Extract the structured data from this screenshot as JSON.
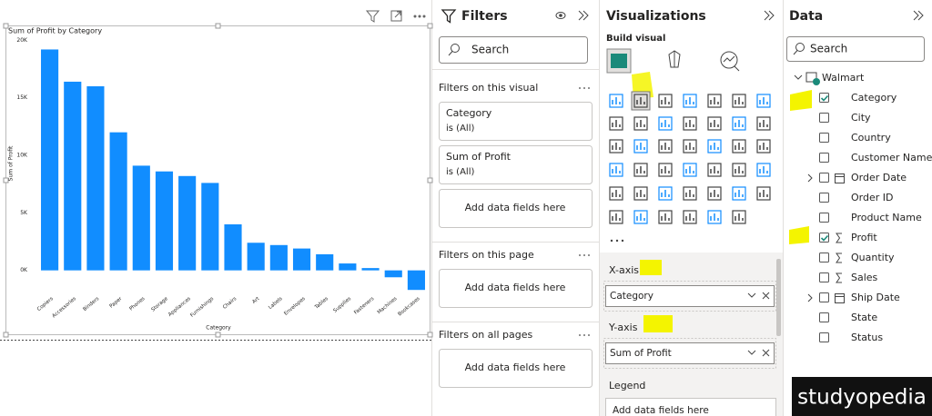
{
  "chart_data": {
    "type": "bar",
    "title": "Sum of Profit by Category",
    "x_label": "Category",
    "y_label": "Sum of Profit",
    "categories": [
      "Copiers",
      "Accessories",
      "Binders",
      "Paper",
      "Phones",
      "Storage",
      "Appliances",
      "Furnishings",
      "Chairs",
      "Art",
      "Labels",
      "Envelopes",
      "Tables",
      "Supplies",
      "Fasteners",
      "Machines",
      "Bookcases"
    ],
    "values": [
      19200,
      16400,
      16000,
      12000,
      9100,
      8600,
      8200,
      7600,
      4000,
      2400,
      2200,
      1900,
      1400,
      600,
      200,
      -600,
      -1700
    ],
    "color": "#118dff",
    "ylim": [
      -2000,
      20500
    ],
    "yticks": [
      {
        "value": 0,
        "label": "0K"
      },
      {
        "value": 5000,
        "label": "5K"
      },
      {
        "value": 10000,
        "label": "10K"
      },
      {
        "value": 15000,
        "label": "15K"
      },
      {
        "value": 20000,
        "label": "20K"
      }
    ],
    "grid": false
  },
  "filters": {
    "title": "Filters",
    "search": "Search",
    "sections": [
      {
        "title": "Filters on this visual",
        "cards": [
          {
            "name": "Category",
            "state": "is (All)"
          },
          {
            "name": "Sum of Profit",
            "state": "is (All)"
          }
        ],
        "add": "Add data fields here"
      },
      {
        "title": "Filters on this page",
        "cards": [],
        "add": "Add data fields here"
      },
      {
        "title": "Filters on all pages",
        "cards": [],
        "add": "Add data fields here"
      }
    ]
  },
  "visualizations": {
    "title": "Visualizations",
    "build": "Build visual",
    "wells": [
      {
        "label": "X-axis",
        "field": "Category"
      },
      {
        "label": "Y-axis",
        "field": "Sum of Profit"
      },
      {
        "label": "Legend",
        "placeholder": "Add data fields here"
      }
    ]
  },
  "data_pane": {
    "title": "Data",
    "search": "Search",
    "table": "Walmart",
    "fields": [
      {
        "name": "Category",
        "checked": true,
        "icon": "none"
      },
      {
        "name": "City",
        "checked": false,
        "icon": "none"
      },
      {
        "name": "Country",
        "checked": false,
        "icon": "none"
      },
      {
        "name": "Customer Name",
        "checked": false,
        "icon": "none"
      },
      {
        "name": "Order Date",
        "checked": false,
        "icon": "date"
      },
      {
        "name": "Order ID",
        "checked": false,
        "icon": "none"
      },
      {
        "name": "Product Name",
        "checked": false,
        "icon": "none"
      },
      {
        "name": "Profit",
        "checked": true,
        "icon": "sum"
      },
      {
        "name": "Quantity",
        "checked": false,
        "icon": "sum"
      },
      {
        "name": "Sales",
        "checked": false,
        "icon": "sum"
      },
      {
        "name": "Ship Date",
        "checked": false,
        "icon": "date"
      },
      {
        "name": "State",
        "checked": false,
        "icon": "none"
      },
      {
        "name": "Status",
        "checked": false,
        "icon": "none"
      }
    ]
  },
  "watermark": "studyopedia"
}
